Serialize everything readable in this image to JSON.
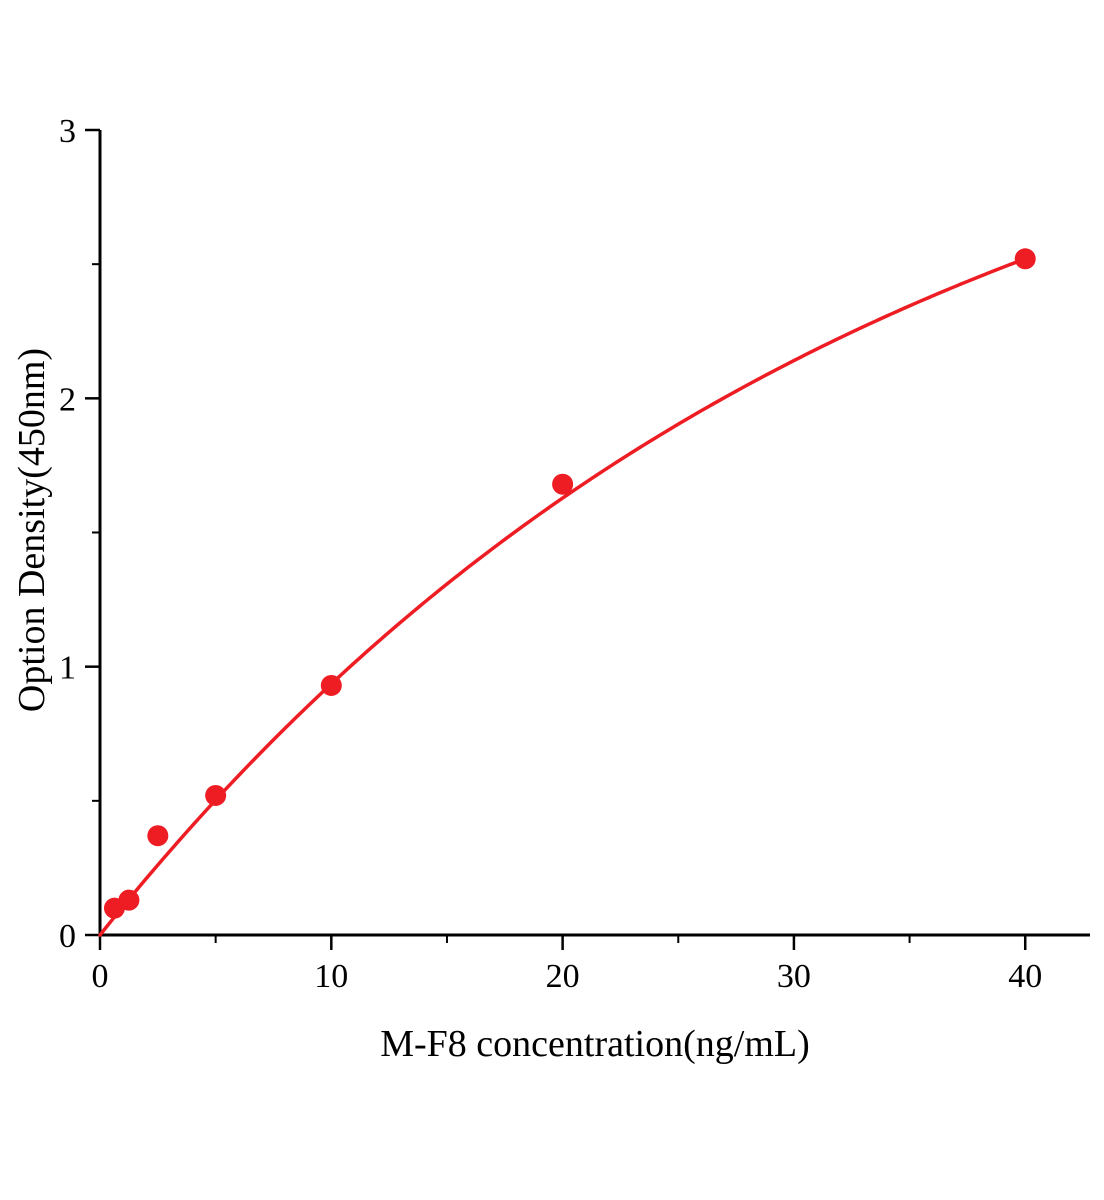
{
  "chart_data": {
    "type": "scatter",
    "title": "",
    "xlabel": "M-F8 concentration(ng/mL)",
    "ylabel": "Option Density(450nm)",
    "x": [
      0.625,
      1.25,
      2.5,
      5,
      10,
      20,
      40
    ],
    "y": [
      0.1,
      0.13,
      0.37,
      0.52,
      0.93,
      1.68,
      2.52
    ],
    "xlim": [
      0,
      42.8
    ],
    "ylim": [
      0,
      3
    ],
    "x_major_ticks": [
      0,
      10,
      20,
      30,
      40
    ],
    "x_minor_ticks": [
      5,
      15,
      25,
      35
    ],
    "y_major_ticks": [
      0,
      1,
      2,
      3
    ],
    "y_minor_ticks": [
      0.5,
      1.5,
      2.5
    ],
    "fit": {
      "model": "y = A*(1-exp(-k*x))",
      "A": 3.6,
      "k": 0.0301,
      "x_start": 0,
      "x_end": 40
    },
    "marker_color": "#ee1c23",
    "line_color": "#ee1c23",
    "axis_color": "#000000",
    "grid": false,
    "legend": null
  }
}
